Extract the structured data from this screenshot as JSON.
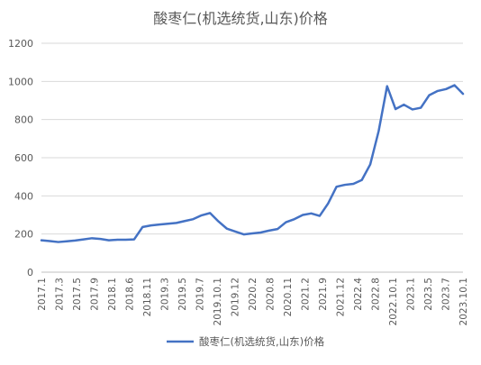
{
  "chart_data": {
    "type": "line",
    "title": "酸枣仁(机选统货,山东)价格",
    "xlabel": "",
    "ylabel": "",
    "ylim": [
      0,
      1200
    ],
    "yticks": [
      0,
      200,
      400,
      600,
      800,
      1000,
      1200
    ],
    "grid": true,
    "legend_position": "bottom",
    "line_color": "#4472c4",
    "x_tick_labels": [
      "2017.1",
      "2017.3",
      "2017.5",
      "2017.9",
      "2018.1",
      "2018.6",
      "2018.11",
      "2019.3",
      "2019.5",
      "2019.7",
      "2019.10.1",
      "2019.12",
      "2020.2",
      "2020.8",
      "2020.11",
      "2021.2",
      "2021.9",
      "2021.12",
      "2022.4",
      "2022.8",
      "2022.10.1",
      "2023.1",
      "2023.5",
      "2023.7",
      "2023.10.1"
    ],
    "series": [
      {
        "name": "酸枣仁(机选统货,山东)价格",
        "values": [
          167,
          163,
          158,
          162,
          166,
          172,
          178,
          174,
          167,
          170,
          170,
          172,
          237,
          245,
          250,
          254,
          258,
          268,
          278,
          298,
          310,
          266,
          228,
          213,
          198,
          203,
          208,
          218,
          226,
          262,
          278,
          300,
          308,
          295,
          360,
          448,
          458,
          463,
          483,
          565,
          740,
          975,
          855,
          878,
          853,
          862,
          928,
          950,
          960,
          980,
          935
        ]
      }
    ]
  }
}
